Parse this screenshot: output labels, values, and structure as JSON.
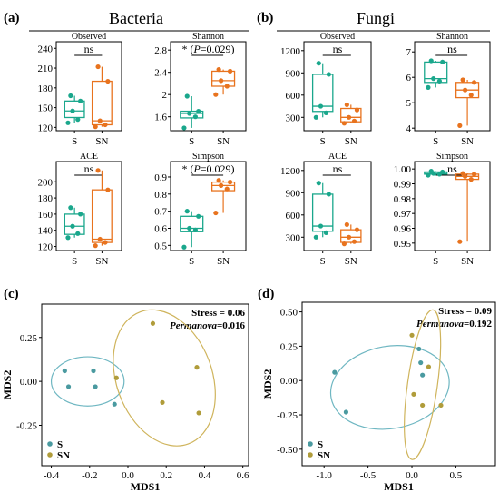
{
  "colors": {
    "S": "#1aa78c",
    "SN": "#e8731e",
    "S_ord": "#4a9aa0",
    "SN_ord": "#b09c3a",
    "S_ell": "#6fb7c2",
    "SN_ell": "#cfb45c"
  },
  "panels": {
    "a": {
      "letter": "(a)",
      "group": "Bacteria"
    },
    "b": {
      "letter": "(b)",
      "group": "Fungi"
    },
    "c": {
      "letter": "(c)"
    },
    "d": {
      "letter": "(d)"
    }
  },
  "chart_data": [
    {
      "type": "box",
      "panel": "a",
      "group": "Bacteria",
      "title": "Observed",
      "categories": [
        "S",
        "SN"
      ],
      "ylim": [
        115,
        250
      ],
      "yticks": [
        120,
        150,
        180,
        210,
        240
      ],
      "significance": "ns",
      "series": [
        {
          "name": "S",
          "min": 127,
          "q1": 135,
          "median": 145,
          "q3": 160,
          "max": 168,
          "points": [
            127,
            132,
            145,
            160,
            168
          ]
        },
        {
          "name": "SN",
          "min": 121,
          "q1": 124,
          "median": 130,
          "q3": 190,
          "max": 212,
          "points": [
            121,
            124,
            130,
            190,
            212
          ]
        }
      ]
    },
    {
      "type": "box",
      "panel": "a",
      "group": "Bacteria",
      "title": "Shannon",
      "categories": [
        "S",
        "SN"
      ],
      "ylim": [
        1.35,
        2.95
      ],
      "yticks": [
        1.6,
        2.0,
        2.4,
        2.8
      ],
      "significance": "*",
      "p_label": "(P=0.029)",
      "series": [
        {
          "name": "S",
          "min": 1.4,
          "q1": 1.58,
          "median": 1.66,
          "q3": 1.7,
          "max": 1.97,
          "points": [
            1.4,
            1.6,
            1.66,
            1.7,
            1.97
          ]
        },
        {
          "name": "SN",
          "min": 2.0,
          "q1": 2.15,
          "median": 2.25,
          "q3": 2.42,
          "max": 2.45,
          "points": [
            2.0,
            2.15,
            2.25,
            2.42,
            2.45
          ]
        }
      ]
    },
    {
      "type": "box",
      "panel": "a",
      "group": "Bacteria",
      "title": "ACE",
      "categories": [
        "S",
        "SN"
      ],
      "ylim": [
        115,
        225
      ],
      "yticks": [
        120,
        140,
        160,
        180,
        200
      ],
      "significance": "ns",
      "series": [
        {
          "name": "S",
          "min": 131,
          "q1": 135,
          "median": 145,
          "q3": 160,
          "max": 168,
          "points": [
            131,
            136,
            145,
            160,
            168
          ]
        },
        {
          "name": "SN",
          "min": 121,
          "q1": 125,
          "median": 129,
          "q3": 190,
          "max": 214,
          "points": [
            121,
            125,
            129,
            190,
            214
          ]
        }
      ]
    },
    {
      "type": "box",
      "panel": "a",
      "group": "Bacteria",
      "title": "Simpson",
      "categories": [
        "S",
        "SN"
      ],
      "ylim": [
        0.47,
        0.99
      ],
      "yticks": [
        0.5,
        0.6,
        0.7,
        0.8,
        0.9
      ],
      "significance": "*",
      "p_label": "(P=0.029)",
      "series": [
        {
          "name": "S",
          "min": 0.49,
          "q1": 0.58,
          "median": 0.6,
          "q3": 0.67,
          "max": 0.7,
          "points": [
            0.49,
            0.59,
            0.6,
            0.67,
            0.7
          ]
        },
        {
          "name": "SN",
          "min": 0.69,
          "q1": 0.82,
          "median": 0.85,
          "q3": 0.87,
          "max": 0.88,
          "points": [
            0.69,
            0.83,
            0.85,
            0.87,
            0.88
          ]
        }
      ]
    },
    {
      "type": "box",
      "panel": "b",
      "group": "Fungi",
      "title": "Observed",
      "categories": [
        "S",
        "SN"
      ],
      "ylim": [
        120,
        1320
      ],
      "yticks": [
        300,
        600,
        900,
        1200
      ],
      "significance": "ns",
      "series": [
        {
          "name": "S",
          "min": 300,
          "q1": 380,
          "median": 450,
          "q3": 880,
          "max": 1030,
          "points": [
            300,
            360,
            450,
            880,
            1030
          ]
        },
        {
          "name": "SN",
          "min": 220,
          "q1": 240,
          "median": 300,
          "q3": 420,
          "max": 470,
          "points": [
            220,
            250,
            300,
            400,
            470
          ]
        }
      ]
    },
    {
      "type": "box",
      "panel": "b",
      "group": "Fungi",
      "title": "Shannon",
      "categories": [
        "S",
        "SN"
      ],
      "ylim": [
        3.9,
        7.4
      ],
      "yticks": [
        4,
        5,
        6,
        7
      ],
      "significance": "ns",
      "series": [
        {
          "name": "S",
          "min": 5.6,
          "q1": 5.8,
          "median": 5.95,
          "q3": 6.6,
          "max": 6.65,
          "points": [
            5.6,
            5.85,
            5.95,
            6.6,
            6.65
          ]
        },
        {
          "name": "SN",
          "min": 4.1,
          "q1": 5.2,
          "median": 5.5,
          "q3": 5.8,
          "max": 5.9,
          "points": [
            4.1,
            5.3,
            5.5,
            5.8,
            5.9
          ]
        }
      ]
    },
    {
      "type": "box",
      "panel": "b",
      "group": "Fungi",
      "title": "ACE",
      "categories": [
        "S",
        "SN"
      ],
      "ylim": [
        120,
        1320
      ],
      "yticks": [
        300,
        600,
        900,
        1200
      ],
      "significance": "ns",
      "series": [
        {
          "name": "S",
          "min": 300,
          "q1": 380,
          "median": 450,
          "q3": 880,
          "max": 1030,
          "points": [
            300,
            360,
            450,
            880,
            1030
          ]
        },
        {
          "name": "SN",
          "min": 210,
          "q1": 230,
          "median": 300,
          "q3": 400,
          "max": 470,
          "points": [
            210,
            240,
            300,
            400,
            470
          ]
        }
      ]
    },
    {
      "type": "box",
      "panel": "b",
      "group": "Fungi",
      "title": "Simpson",
      "categories": [
        "S",
        "SN"
      ],
      "ylim": [
        0.945,
        1.005
      ],
      "yticks": [
        0.95,
        0.96,
        0.97,
        0.98,
        0.99,
        1.0
      ],
      "ytick_labels": [
        "0.95",
        "0.96",
        "0.97",
        "0.98",
        "0.99",
        "1.00"
      ],
      "significance": "ns",
      "series": [
        {
          "name": "S",
          "min": 0.9955,
          "q1": 0.9965,
          "median": 0.997,
          "q3": 0.998,
          "max": 0.9985,
          "points": [
            0.9958,
            0.9965,
            0.997,
            0.998,
            0.9985
          ]
        },
        {
          "name": "SN",
          "min": 0.951,
          "q1": 0.993,
          "median": 0.995,
          "q3": 0.9965,
          "max": 0.997,
          "points": [
            0.951,
            0.993,
            0.995,
            0.9965,
            0.997
          ]
        }
      ]
    },
    {
      "type": "scatter",
      "panel": "c",
      "xlabel": "MDS1",
      "ylabel": "MDS2",
      "xlim": [
        -0.45,
        0.63
      ],
      "ylim": [
        -0.48,
        0.44
      ],
      "xticks": [
        -0.4,
        -0.2,
        0.0,
        0.2,
        0.4,
        0.6
      ],
      "xtick_labels": [
        "-0.4",
        "-0.2",
        "0.0",
        "0.2",
        "0.4",
        "0.6"
      ],
      "yticks": [
        -0.25,
        0.0,
        0.25
      ],
      "ytick_labels": [
        "-0.25",
        "0.00",
        "0.25"
      ],
      "stress_label": "Stress = 0.06",
      "permanova_name": "Permanova",
      "permanova_value": "=0.016",
      "legend": "bottom-left",
      "series": [
        {
          "name": "S",
          "x": [
            -0.33,
            -0.31,
            -0.18,
            -0.17,
            -0.07
          ],
          "y": [
            0.06,
            -0.03,
            0.06,
            -0.03,
            -0.13
          ],
          "ellipse": {
            "cx": -0.21,
            "cy": 0.0,
            "rx": 0.19,
            "ry": 0.14,
            "angle": 0
          }
        },
        {
          "name": "SN",
          "x": [
            0.13,
            0.18,
            0.36,
            0.37,
            -0.06
          ],
          "y": [
            0.33,
            -0.12,
            0.08,
            -0.18,
            0.02
          ],
          "ellipse": {
            "cx": 0.19,
            "cy": 0.02,
            "rx": 0.25,
            "ry": 0.4,
            "angle": 20
          }
        }
      ]
    },
    {
      "type": "scatter",
      "panel": "d",
      "xlabel": "MDS1",
      "ylabel": "MDS2",
      "xlim": [
        -1.25,
        0.95
      ],
      "ylim": [
        -0.62,
        0.57
      ],
      "xticks": [
        -1.0,
        -0.5,
        0.0,
        0.5
      ],
      "xtick_labels": [
        "-1.0",
        "-0.5",
        "0.0",
        "0.5"
      ],
      "yticks": [
        -0.5,
        -0.25,
        0.0,
        0.25,
        0.5
      ],
      "ytick_labels": [
        "-0.50",
        "-0.25",
        "0.00",
        "0.25",
        "0.50"
      ],
      "stress_label": "Stress = 0.09",
      "permanova_name": "Permanova",
      "permanova_value": "=0.192",
      "legend": "bottom-left",
      "series": [
        {
          "name": "S",
          "x": [
            -0.88,
            -0.75,
            0.08,
            0.1,
            0.12
          ],
          "y": [
            0.06,
            -0.23,
            0.23,
            0.13,
            0.04
          ],
          "ellipse": {
            "cx": -0.25,
            "cy": -0.05,
            "rx": 0.68,
            "ry": 0.3,
            "angle": 10
          }
        },
        {
          "name": "SN",
          "x": [
            0.0,
            0.02,
            0.12,
            0.19,
            0.33
          ],
          "y": [
            0.33,
            -0.1,
            -0.18,
            0.1,
            -0.18
          ],
          "ellipse": {
            "cx": 0.12,
            "cy": -0.03,
            "rx": 0.17,
            "ry": 0.55,
            "angle": -8
          }
        }
      ]
    }
  ]
}
